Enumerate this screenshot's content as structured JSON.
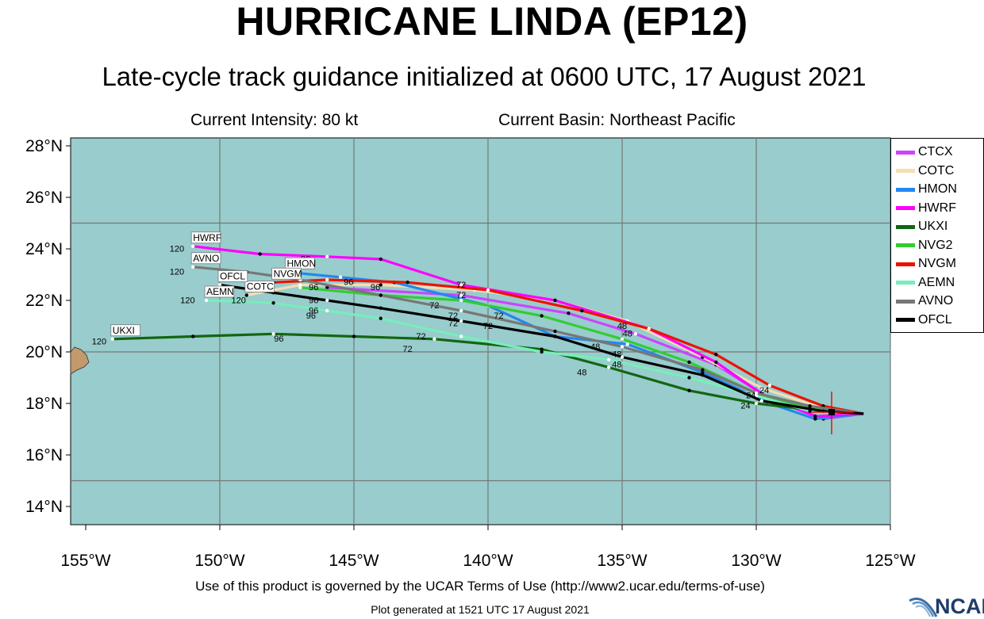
{
  "title": "HURRICANE LINDA (EP12)",
  "subtitle": "Late-cycle track guidance initialized at 0600 UTC, 17 August 2021",
  "current_intensity": "Current Intensity: 80 kt",
  "current_basin": "Current Basin: Northeast Pacific",
  "terms": "Use of this product is governed by the UCAR Terms of Use (http://www2.ucar.edu/terms-of-use)",
  "generated": "Plot generated at 1521 UTC   17 August 2021",
  "logo_text": "NCAR",
  "colors": {
    "ocean": "#99cccc",
    "land": "#c29a6b"
  },
  "lat_labels": [
    "14°N",
    "16°N",
    "18°N",
    "20°N",
    "22°N",
    "24°N",
    "26°N",
    "28°N"
  ],
  "lon_labels": [
    "155°W",
    "150°W",
    "145°W",
    "140°W",
    "135°W",
    "130°W",
    "125°W"
  ],
  "legend": [
    {
      "name": "CTCX",
      "color": "#cc44ff"
    },
    {
      "name": "COTC",
      "color": "#f5deb3"
    },
    {
      "name": "HMON",
      "color": "#2288ee"
    },
    {
      "name": "HWRF",
      "color": "#ff00ff"
    },
    {
      "name": "UKXI",
      "color": "#116611"
    },
    {
      "name": "NVG2",
      "color": "#33cc33"
    },
    {
      "name": "NVGM",
      "color": "#ee1100"
    },
    {
      "name": "AEMN",
      "color": "#77eebb"
    },
    {
      "name": "AVNO",
      "color": "#777777"
    },
    {
      "name": "OFCL",
      "color": "#000000"
    }
  ],
  "tracks": [
    {
      "name": "CTCX",
      "color": "#cc44ff",
      "pts": [
        [
          -126,
          17.6
        ],
        [
          -127.5,
          17.4
        ],
        [
          -129.5,
          18.2
        ],
        [
          -131.5,
          19.5
        ],
        [
          -134.5,
          20.7
        ],
        [
          -137,
          21.5
        ],
        [
          -141,
          22.2
        ],
        [
          -146,
          22.5
        ]
      ],
      "label": ""
    },
    {
      "name": "COTC",
      "color": "#f5deb3",
      "pts": [
        [
          -126,
          17.6
        ],
        [
          -127.5,
          17.8
        ],
        [
          -129.8,
          18.6
        ],
        [
          -132,
          19.8
        ],
        [
          -134.8,
          21.2
        ],
        [
          -137.5,
          22
        ],
        [
          -140.5,
          22.4
        ],
        [
          -144,
          22.6
        ],
        [
          -147,
          22.6
        ],
        [
          -149,
          22.2
        ]
      ],
      "label": "COTC"
    },
    {
      "name": "HMON",
      "color": "#2288ee",
      "pts": [
        [
          -126,
          17.6
        ],
        [
          -127.8,
          17.4
        ],
        [
          -129.5,
          18
        ],
        [
          -132,
          19.2
        ],
        [
          -134.8,
          20.3
        ],
        [
          -137.5,
          20.6
        ],
        [
          -140,
          21.8
        ],
        [
          -143.5,
          22.7
        ],
        [
          -145.5,
          22.9
        ],
        [
          -147.5,
          23.1
        ]
      ],
      "label": "HMON"
    },
    {
      "name": "HWRF",
      "color": "#ff00ff",
      "pts": [
        [
          -126,
          17.6
        ],
        [
          -127.8,
          17.5
        ],
        [
          -129.7,
          18.3
        ],
        [
          -131.5,
          19.6
        ],
        [
          -134,
          20.9
        ],
        [
          -137.5,
          22
        ],
        [
          -141,
          22.6
        ],
        [
          -144,
          23.6
        ],
        [
          -146,
          23.7
        ],
        [
          -148.5,
          23.8
        ],
        [
          -151,
          24.1
        ]
      ],
      "label": "HWRF"
    },
    {
      "name": "UKXI",
      "color": "#116611",
      "pts": [
        [
          -126,
          17.6
        ],
        [
          -127.5,
          17.7
        ],
        [
          -130,
          18
        ],
        [
          -132.5,
          18.5
        ],
        [
          -135.5,
          19.4
        ],
        [
          -138,
          20.1
        ],
        [
          -142,
          20.5
        ],
        [
          -145,
          20.6
        ],
        [
          -148,
          20.7
        ],
        [
          -151,
          20.6
        ],
        [
          -154,
          20.5
        ]
      ],
      "label": "UKXI"
    },
    {
      "name": "NVG2",
      "color": "#33cc33",
      "pts": [
        [
          -126,
          17.6
        ],
        [
          -128,
          17.8
        ],
        [
          -130,
          18.4
        ],
        [
          -132.5,
          19.6
        ],
        [
          -135,
          20.5
        ],
        [
          -138,
          21.4
        ],
        [
          -141,
          22
        ],
        [
          -144,
          22.2
        ],
        [
          -147,
          22.5
        ]
      ],
      "label": ""
    },
    {
      "name": "NVGM",
      "color": "#ee1100",
      "pts": [
        [
          -126,
          17.6
        ],
        [
          -127.5,
          17.9
        ],
        [
          -129.5,
          18.7
        ],
        [
          -131.5,
          19.9
        ],
        [
          -134,
          20.9
        ],
        [
          -136.5,
          21.6
        ],
        [
          -140,
          22.4
        ],
        [
          -143,
          22.7
        ],
        [
          -146,
          22.8
        ],
        [
          -148,
          22.7
        ]
      ],
      "label": "NVGM"
    },
    {
      "name": "AEMN",
      "color": "#77eebb",
      "pts": [
        [
          -126,
          17.6
        ],
        [
          -128,
          17.7
        ],
        [
          -130,
          18.3
        ],
        [
          -132.5,
          19
        ],
        [
          -135.5,
          19.7
        ],
        [
          -138,
          20
        ],
        [
          -141,
          20.6
        ],
        [
          -144,
          21.3
        ],
        [
          -146,
          21.6
        ],
        [
          -148,
          21.9
        ],
        [
          -150.5,
          22
        ]
      ],
      "label": "AEMN"
    },
    {
      "name": "AVNO",
      "color": "#777777",
      "pts": [
        [
          -126,
          17.6
        ],
        [
          -128,
          17.9
        ],
        [
          -130,
          18.4
        ],
        [
          -132,
          19.3
        ],
        [
          -135,
          20.2
        ],
        [
          -137.5,
          20.8
        ],
        [
          -141,
          21.6
        ],
        [
          -144,
          22.2
        ],
        [
          -147,
          22.8
        ],
        [
          -149,
          23.1
        ],
        [
          -151,
          23.3
        ]
      ],
      "label": "AVNO"
    },
    {
      "name": "OFCL",
      "color": "#000000",
      "pts": [
        [
          -126,
          17.6
        ],
        [
          -127.5,
          17.7
        ],
        [
          -129.8,
          18.1
        ],
        [
          -132,
          19.1
        ],
        [
          -135,
          19.8
        ],
        [
          -137.5,
          20.6
        ],
        [
          -141,
          21.2
        ],
        [
          -144,
          21.7
        ],
        [
          -146,
          22
        ],
        [
          -148,
          22.3
        ],
        [
          -150,
          22.6
        ]
      ],
      "label": "OFCL"
    }
  ],
  "time_labels": [
    {
      "t": "120",
      "lon": -151.6,
      "lat": 23.9
    },
    {
      "t": "120",
      "lon": -151.6,
      "lat": 23.0
    },
    {
      "t": "120",
      "lon": -147.6,
      "lat": 22.9
    },
    {
      "t": "120",
      "lon": -151.2,
      "lat": 21.9
    },
    {
      "t": "120",
      "lon": -149.3,
      "lat": 21.9
    },
    {
      "t": "120",
      "lon": -154.5,
      "lat": 20.3
    },
    {
      "t": "96",
      "lon": -146.8,
      "lat": 23.5
    },
    {
      "t": "96",
      "lon": -146.5,
      "lat": 22.4
    },
    {
      "t": "96",
      "lon": -146.5,
      "lat": 21.9
    },
    {
      "t": "96",
      "lon": -146.5,
      "lat": 21.5
    },
    {
      "t": "96",
      "lon": -146.6,
      "lat": 21.3
    },
    {
      "t": "96",
      "lon": -145.2,
      "lat": 22.6
    },
    {
      "t": "96",
      "lon": -144.2,
      "lat": 22.4
    },
    {
      "t": "96",
      "lon": -147.8,
      "lat": 20.4
    },
    {
      "t": "72",
      "lon": -141,
      "lat": 22.5
    },
    {
      "t": "72",
      "lon": -141,
      "lat": 22.1
    },
    {
      "t": "72",
      "lon": -142,
      "lat": 21.7
    },
    {
      "t": "72",
      "lon": -141.3,
      "lat": 21.3
    },
    {
      "t": "72",
      "lon": -141.3,
      "lat": 21.0
    },
    {
      "t": "72",
      "lon": -139.6,
      "lat": 21.3
    },
    {
      "t": "72",
      "lon": -140,
      "lat": 20.9
    },
    {
      "t": "72",
      "lon": -142.5,
      "lat": 20.5
    },
    {
      "t": "72",
      "lon": -143,
      "lat": 20.0
    },
    {
      "t": "48",
      "lon": -135,
      "lat": 20.9
    },
    {
      "t": "48",
      "lon": -134.8,
      "lat": 20.6
    },
    {
      "t": "48",
      "lon": -136,
      "lat": 20.1
    },
    {
      "t": "48",
      "lon": -135.2,
      "lat": 19.8
    },
    {
      "t": "48",
      "lon": -135.2,
      "lat": 19.4
    },
    {
      "t": "48",
      "lon": -136.5,
      "lat": 19.1
    },
    {
      "t": "24",
      "lon": -130.2,
      "lat": 18.2
    },
    {
      "t": "24",
      "lon": -130.4,
      "lat": 17.8
    },
    {
      "t": "24",
      "lon": -129.7,
      "lat": 18.4
    }
  ]
}
